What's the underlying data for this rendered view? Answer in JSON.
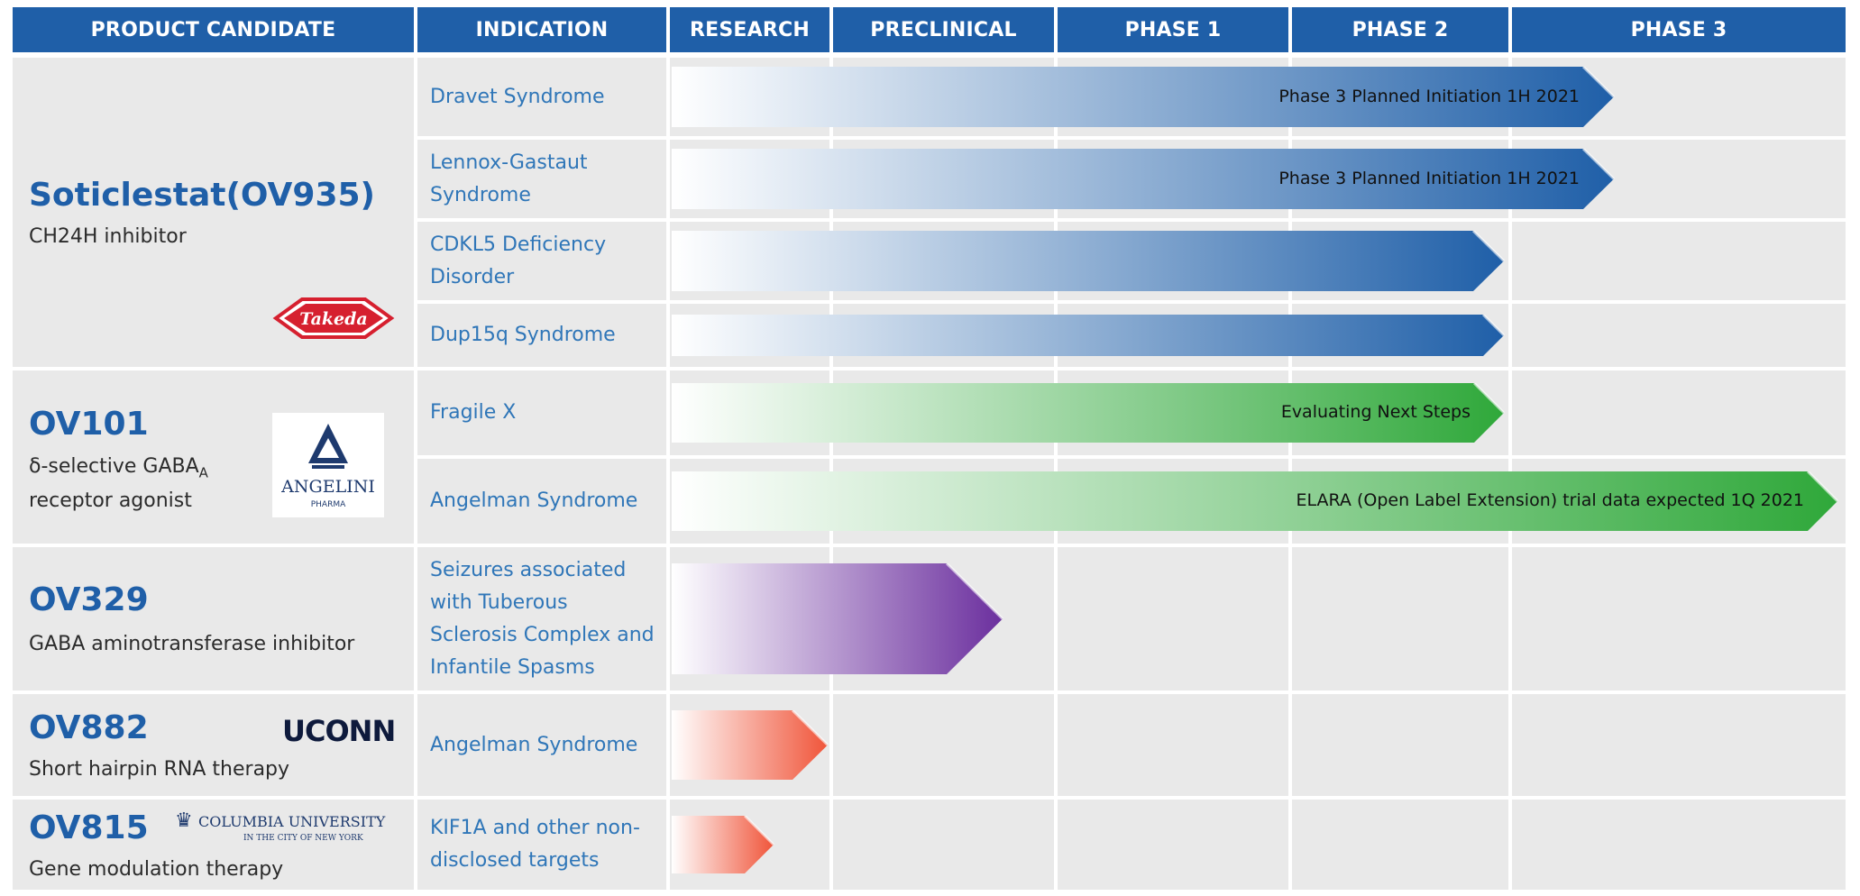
{
  "headers": [
    "PRODUCT CANDIDATE",
    "INDICATION",
    "RESEARCH",
    "PRECLINICAL",
    "PHASE 1",
    "PHASE 2",
    "PHASE 3"
  ],
  "candidates": [
    {
      "name": "Soticlestat(OV935)",
      "desc": "CH24H inhibitor",
      "partner_logo": "Takeda"
    },
    {
      "name": "OV101",
      "desc_pre": "δ-selective GABA",
      "desc_sub": "A",
      "desc_post": "receptor agonist",
      "partner_logo": "ANGELINI",
      "partner_sub": "PHARMA"
    },
    {
      "name": "OV329",
      "desc": "GABA aminotransferase inhibitor"
    },
    {
      "name": "OV882",
      "desc": "Short hairpin RNA therapy",
      "partner_logo": "UCONN"
    },
    {
      "name": "OV815",
      "desc": "Gene modulation therapy",
      "partner_logo": "COLUMBIA UNIVERSITY",
      "partner_sub": "IN THE CITY OF NEW YORK"
    }
  ],
  "indications": [
    {
      "label": "Dravet Syndrome",
      "bar_label": "Phase 3 Planned Initiation 1H 2021",
      "color": "#1f5fa8"
    },
    {
      "label": "Lennox-Gastaut Syndrome",
      "bar_label": "Phase 3 Planned Initiation 1H 2021",
      "color": "#1f5fa8"
    },
    {
      "label": "CDKL5 Deficiency Disorder",
      "bar_label": "",
      "color": "#1f5fa8"
    },
    {
      "label": "Dup15q Syndrome",
      "bar_label": "",
      "color": "#1f5fa8"
    },
    {
      "label": "Fragile X",
      "bar_label": "Evaluating Next Steps",
      "color": "#2fa83a"
    },
    {
      "label": "Angelman Syndrome",
      "bar_label": "ELARA (Open Label Extension) trial data expected 1Q 2021",
      "color": "#2fa83a"
    },
    {
      "label": "Seizures associated with Tuberous Sclerosis Complex and Infantile Spasms",
      "bar_label": "",
      "color": "#6b2f9e"
    },
    {
      "label": "Angelman Syndrome",
      "bar_label": "",
      "color": "#f0553a"
    },
    {
      "label": "KIF1A and other non-disclosed targets",
      "bar_label": "",
      "color": "#f0553a"
    }
  ]
}
